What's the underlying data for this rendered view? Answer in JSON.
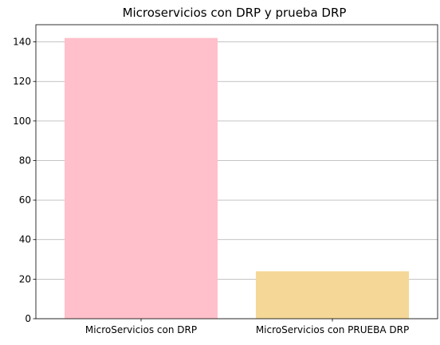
{
  "chart_data": {
    "type": "bar",
    "title": "Microservicios con DRP y prueba DRP",
    "xlabel": "",
    "ylabel": "",
    "categories": [
      "MicroServicios con DRP",
      "MicroServicios con PRUEBA DRP"
    ],
    "values": [
      142,
      24
    ],
    "bar_colors": [
      "#ffc0cb",
      "#f5d897"
    ],
    "ylim": [
      0,
      148.7
    ],
    "yticks": [
      0,
      20,
      40,
      60,
      80,
      100,
      120,
      140
    ],
    "grid": "y",
    "grid_color": "#b0b0b0",
    "legend": "none"
  }
}
